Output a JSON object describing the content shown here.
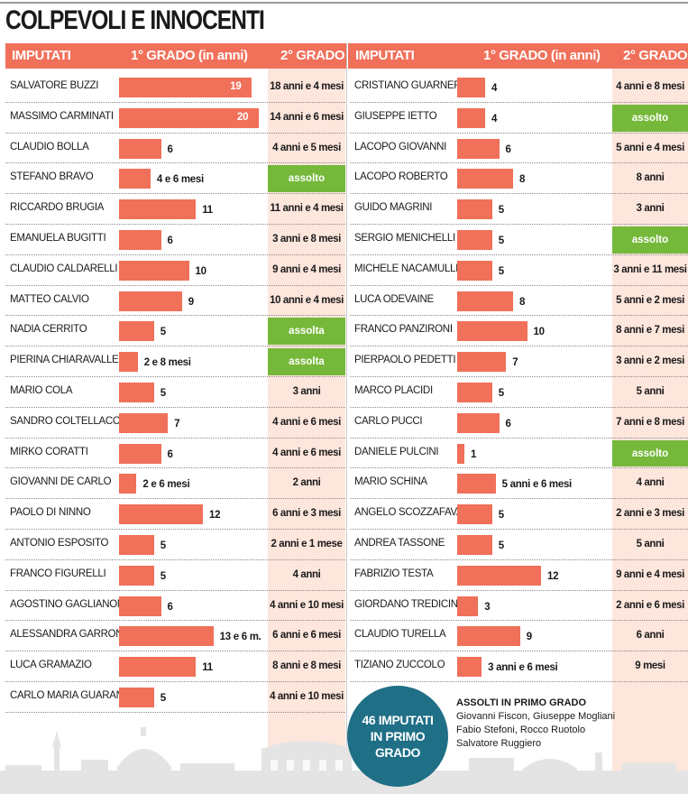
{
  "title": "COLPEVOLI E INNOCENTI",
  "headers": {
    "imputati": "IMPUTATI",
    "grado1": "1° GRADO (in anni)",
    "grado2": "2° GRADO"
  },
  "chart_data": {
    "type": "bar",
    "orientation": "horizontal",
    "title": "COLPEVOLI E INNOCENTI",
    "xlabel": "1° GRADO (in anni)",
    "series_columns": [
      "1° GRADO (in anni)",
      "2° GRADO"
    ],
    "rows_left": [
      {
        "name": "SALVATORE BUZZI",
        "years": 19,
        "label": "19",
        "second": "18 anni e 4 mesi",
        "acquitted": false
      },
      {
        "name": "MASSIMO CARMINATI",
        "years": 20,
        "label": "20",
        "second": "14 anni e 6 mesi",
        "acquitted": false
      },
      {
        "name": "CLAUDIO BOLLA",
        "years": 6,
        "label": "6",
        "second": "4 anni e 5 mesi",
        "acquitted": false
      },
      {
        "name": "STEFANO BRAVO",
        "years": 4.5,
        "label": "4 e 6 mesi",
        "second": "assolto",
        "acquitted": true
      },
      {
        "name": "RICCARDO BRUGIA",
        "years": 11,
        "label": "11",
        "second": "11 anni e 4 mesi",
        "acquitted": false
      },
      {
        "name": "EMANUELA BUGITTI",
        "years": 6,
        "label": "6",
        "second": "3 anni e 8 mesi",
        "acquitted": false
      },
      {
        "name": "CLAUDIO CALDARELLI",
        "years": 10,
        "label": "10",
        "second": "9 anni e 4 mesi",
        "acquitted": false
      },
      {
        "name": "MATTEO CALVIO",
        "years": 9,
        "label": "9",
        "second": "10 anni e 4 mesi",
        "acquitted": false
      },
      {
        "name": "NADIA CERRITO",
        "years": 5,
        "label": "5",
        "second": "assolta",
        "acquitted": true
      },
      {
        "name": "PIERINA CHIARAVALLE",
        "years": 2.67,
        "label": "2 e 8 mesi",
        "second": "assolta",
        "acquitted": true
      },
      {
        "name": "MARIO COLA",
        "years": 5,
        "label": "5",
        "second": "3 anni",
        "acquitted": false
      },
      {
        "name": "SANDRO COLTELLACCI",
        "years": 7,
        "label": "7",
        "second": "4 anni e 6 mesi",
        "acquitted": false
      },
      {
        "name": "MIRKO CORATTI",
        "years": 6,
        "label": "6",
        "second": "4 anni e 6 mesi",
        "acquitted": false
      },
      {
        "name": "GIOVANNI DE CARLO",
        "years": 2.5,
        "label": "2 e 6 mesi",
        "second": "2 anni",
        "acquitted": false
      },
      {
        "name": "PAOLO DI NINNO",
        "years": 12,
        "label": "12",
        "second": "6 anni e 3 mesi",
        "acquitted": false
      },
      {
        "name": "ANTONIO ESPOSITO",
        "years": 5,
        "label": "5",
        "second": "2 anni e 1 mese",
        "acquitted": false
      },
      {
        "name": "FRANCO FIGURELLI",
        "years": 5,
        "label": "5",
        "second": "4 anni",
        "acquitted": false
      },
      {
        "name": "AGOSTINO GAGLIANONE",
        "years": 6,
        "label": "6",
        "second": "4 anni e 10 mesi",
        "acquitted": false
      },
      {
        "name": "ALESSANDRA GARRONE",
        "years": 13.5,
        "label": "13 e 6 m.",
        "second": "6 anni e 6 mesi",
        "acquitted": false
      },
      {
        "name": "LUCA GRAMAZIO",
        "years": 11,
        "label": "11",
        "second": "8 anni e 8 mesi",
        "acquitted": false
      },
      {
        "name": "CARLO MARIA GUARANY",
        "years": 5,
        "label": "5",
        "second": "4 anni e 10 mesi",
        "acquitted": false
      }
    ],
    "rows_right": [
      {
        "name": "CRISTIANO GUARNERA",
        "years": 4,
        "label": "4",
        "second": "4 anni e 8 mesi",
        "acquitted": false
      },
      {
        "name": "GIUSEPPE IETTO",
        "years": 4,
        "label": "4",
        "second": "assolto",
        "acquitted": true
      },
      {
        "name": "LACOPO GIOVANNI",
        "years": 6,
        "label": "6",
        "second": "5 anni e 4 mesi",
        "acquitted": false
      },
      {
        "name": "LACOPO ROBERTO",
        "years": 8,
        "label": "8",
        "second": "8 anni",
        "acquitted": false
      },
      {
        "name": "GUIDO MAGRINI",
        "years": 5,
        "label": "5",
        "second": "3 anni",
        "acquitted": false
      },
      {
        "name": "SERGIO MENICHELLI",
        "years": 5,
        "label": "5",
        "second": "assolto",
        "acquitted": true
      },
      {
        "name": "MICHELE NACAMULLI",
        "years": 5,
        "label": "5",
        "second": "3 anni e 11 mesi",
        "acquitted": false
      },
      {
        "name": "LUCA ODEVAINE",
        "years": 8,
        "label": "8",
        "second": "5 anni e 2 mesi",
        "acquitted": false
      },
      {
        "name": "FRANCO PANZIRONI",
        "years": 10,
        "label": "10",
        "second": "8 anni e 7 mesi",
        "acquitted": false
      },
      {
        "name": "PIERPAOLO PEDETTI",
        "years": 7,
        "label": "7",
        "second": "3 anni e 2 mesi",
        "acquitted": false
      },
      {
        "name": "MARCO PLACIDI",
        "years": 5,
        "label": "5",
        "second": "5 anni",
        "acquitted": false
      },
      {
        "name": "CARLO PUCCI",
        "years": 6,
        "label": "6",
        "second": "7 anni e 8 mesi",
        "acquitted": false
      },
      {
        "name": "DANIELE PULCINI",
        "years": 1,
        "label": "1",
        "second": "assolto",
        "acquitted": true
      },
      {
        "name": "MARIO SCHINA",
        "years": 5.5,
        "label": "5 anni e 6 mesi",
        "second": "4 anni",
        "acquitted": false
      },
      {
        "name": "ANGELO SCOZZAFAVA",
        "years": 5,
        "label": "5",
        "second": "2 anni e 3 mesi",
        "acquitted": false
      },
      {
        "name": "ANDREA TASSONE",
        "years": 5,
        "label": "5",
        "second": "5 anni",
        "acquitted": false
      },
      {
        "name": "FABRIZIO TESTA",
        "years": 12,
        "label": "12",
        "second": "9 anni e 4 mesi",
        "acquitted": false
      },
      {
        "name": "GIORDANO TREDICINE",
        "years": 3,
        "label": "3",
        "second": "2 anni e 6 mesi",
        "acquitted": false
      },
      {
        "name": "CLAUDIO TURELLA",
        "years": 9,
        "label": "9",
        "second": "6 anni",
        "acquitted": false
      },
      {
        "name": "TIZIANO ZUCCOLO",
        "years": 3.5,
        "label": "3 anni e 6 mesi",
        "second": "9 mesi",
        "acquitted": false
      }
    ]
  },
  "badge": {
    "line1": "46 IMPUTATI",
    "line2": "IN PRIMO GRADO"
  },
  "absolved": {
    "heading": "ASSOLTI IN PRIMO GRADO",
    "line1": "Giovanni Fiscon, Giuseppe Mogliani",
    "line2": "Fabio Stefoni, Rocco Ruotolo",
    "line3": "Salvatore Ruggiero"
  },
  "colors": {
    "bar": "#f0705a",
    "acquitted": "#75b83a",
    "grado2_bg": "#fde6dc",
    "badge": "#1f6f86"
  }
}
